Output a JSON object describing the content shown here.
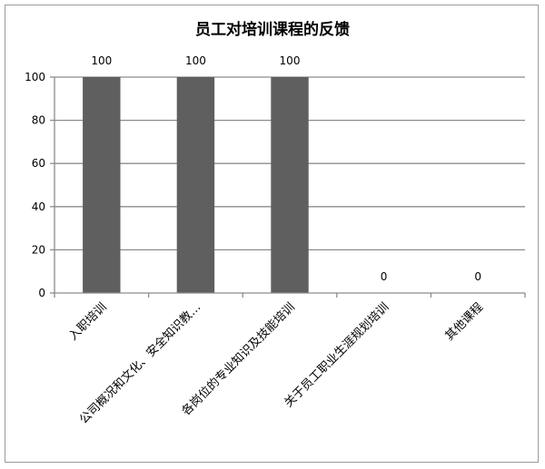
{
  "chart_data": {
    "type": "bar",
    "title": "员工对培训课程的反馈",
    "xlabel": "",
    "ylabel": "",
    "categories": [
      "入职培训",
      "公司概况和文化、安全知识教…",
      "各岗位的专业知识及技能培训",
      "关于员工职业生涯规划培训",
      "其他课程"
    ],
    "values": [
      100,
      100,
      100,
      0,
      0
    ],
    "data_labels": [
      "100",
      "100",
      "100",
      "0",
      "0"
    ],
    "ylim": [
      0,
      100
    ],
    "yticks": [
      0,
      20,
      40,
      60,
      80,
      100
    ],
    "grid": true,
    "legend": "none",
    "bar_color": "#5f5f5f",
    "grid_color": "#8c8c8c"
  }
}
